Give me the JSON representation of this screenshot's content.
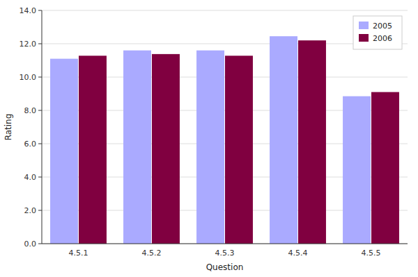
{
  "chart_data": {
    "type": "bar",
    "xlabel": "Question",
    "ylabel": "Rating",
    "categories": [
      "4.5.1",
      "4.5.2",
      "4.5.3",
      "4.5.4",
      "4.5.5"
    ],
    "series": [
      {
        "name": "2005",
        "color": "#aaaaff",
        "values": [
          11.1,
          11.6,
          11.6,
          12.45,
          8.85
        ]
      },
      {
        "name": "2006",
        "color": "#800040",
        "values": [
          11.28,
          11.38,
          11.28,
          12.2,
          9.1
        ]
      }
    ],
    "ylim": [
      0,
      14.0
    ],
    "yticks": [
      {
        "value": 0.0,
        "label": "0.0"
      },
      {
        "value": 2.0,
        "label": "2.0"
      },
      {
        "value": 4.0,
        "label": "4.0"
      },
      {
        "value": 6.0,
        "label": "6.0"
      },
      {
        "value": 8.0,
        "label": "8.0"
      },
      {
        "value": 10.0,
        "label": "10.0"
      },
      {
        "value": 12.0,
        "label": "12.0"
      },
      {
        "value": 14.0,
        "label": "14.0"
      }
    ],
    "grid": true,
    "legend": "upper right"
  }
}
